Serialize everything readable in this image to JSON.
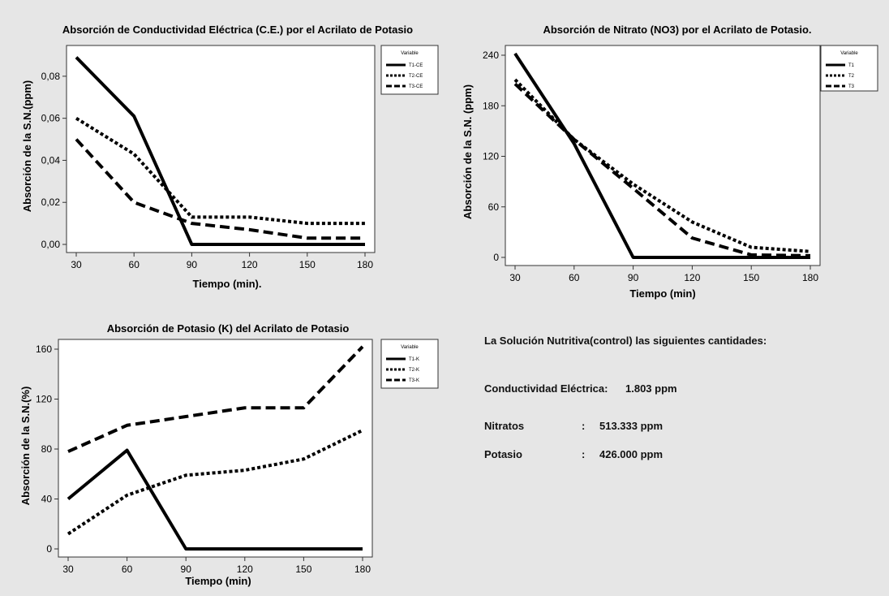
{
  "charts": [
    {
      "id": "ce",
      "title": "Absorción de Conductividad Eléctrica (C.E.) por el Acrilato de Potasio",
      "xlabel": "Tiempo (min).",
      "ylabel": "Absorción  de la S.N.(ppm)",
      "legend_title": "Variable"
    },
    {
      "id": "no3",
      "title": "Absorción de Nitrato (NO3) por el Acrilato de Potasio.",
      "xlabel": "Tiempo (min)",
      "ylabel": "Absorción de la S.N. (ppm)",
      "legend_title": "Variable"
    },
    {
      "id": "k",
      "title": "Absorción de Potasio (K) del Acrilato de Potasio",
      "xlabel": "Tiempo (min)",
      "ylabel": "Absorción  de la S.N.(%)",
      "legend_title": "Variable"
    }
  ],
  "chart_data": [
    {
      "type": "line",
      "title": "Absorción de Conductividad Eléctrica (C.E.) por el Acrilato de Potasio",
      "xlabel": "Tiempo (min).",
      "ylabel": "Absorción  de la S.N.(ppm)",
      "x": [
        30,
        60,
        90,
        120,
        150,
        180
      ],
      "xticks": [
        "30",
        "60",
        "90",
        "120",
        "150",
        "180"
      ],
      "yticks": [
        "0,00",
        "0,02",
        "0,04",
        "0,06",
        "0,08"
      ],
      "ytick_values": [
        0,
        0.02,
        0.04,
        0.06,
        0.08
      ],
      "xlim": [
        30,
        180
      ],
      "ylim": [
        0,
        0.09
      ],
      "legend_title": "Variable",
      "legend_position": "top-right",
      "series": [
        {
          "name": "T1-CE",
          "values": [
            0.089,
            0.061,
            0.0,
            0.0,
            0.0,
            0.0
          ],
          "style": "solid"
        },
        {
          "name": "T2-CE",
          "values": [
            0.06,
            0.043,
            0.013,
            0.013,
            0.01,
            0.01
          ],
          "style": "dotted"
        },
        {
          "name": "T3-CE",
          "values": [
            0.05,
            0.02,
            0.01,
            0.007,
            0.003,
            0.003
          ],
          "style": "dashed"
        }
      ]
    },
    {
      "type": "line",
      "title": "Absorción de Nitrato (NO3) por el Acrilato de Potasio.",
      "xlabel": "Tiempo (min)",
      "ylabel": "Absorción de la S.N. (ppm)",
      "x": [
        30,
        60,
        90,
        120,
        150,
        180
      ],
      "xticks": [
        "30",
        "60",
        "90",
        "120",
        "150",
        "180"
      ],
      "yticks": [
        "0",
        "60",
        "120",
        "180",
        "240"
      ],
      "ytick_values": [
        0,
        60,
        120,
        180,
        240
      ],
      "xlim": [
        30,
        180
      ],
      "ylim": [
        0,
        240
      ],
      "legend_title": "Variable",
      "legend_position": "top-right",
      "series": [
        {
          "name": "T1",
          "values": [
            242,
            135,
            0,
            0,
            0,
            0
          ],
          "style": "solid"
        },
        {
          "name": "T2",
          "values": [
            211,
            140,
            87,
            42,
            12,
            7
          ],
          "style": "dotted"
        },
        {
          "name": "T3",
          "values": [
            206,
            140,
            82,
            23,
            3,
            2
          ],
          "style": "dashed"
        }
      ]
    },
    {
      "type": "line",
      "title": "Absorción de Potasio (K) del Acrilato de Potasio",
      "xlabel": "Tiempo (min)",
      "ylabel": "Absorción  de la S.N.(%)",
      "x": [
        30,
        60,
        90,
        120,
        150,
        180
      ],
      "xticks": [
        "30",
        "60",
        "90",
        "120",
        "150",
        "180"
      ],
      "yticks": [
        "0",
        "40",
        "80",
        "120",
        "160"
      ],
      "ytick_values": [
        0,
        40,
        80,
        120,
        160
      ],
      "xlim": [
        30,
        180
      ],
      "ylim": [
        0,
        160
      ],
      "legend_title": "Variable",
      "legend_position": "top-right",
      "series": [
        {
          "name": "T1-K",
          "values": [
            40,
            79,
            0,
            0,
            0,
            0
          ],
          "style": "solid"
        },
        {
          "name": "T2-K",
          "values": [
            12,
            43,
            59,
            63,
            72,
            95
          ],
          "style": "dotted"
        },
        {
          "name": "T3-K",
          "values": [
            78,
            99,
            106,
            113,
            113,
            162
          ],
          "style": "dashed"
        }
      ]
    }
  ],
  "info": {
    "title": "La Solución Nutritiva(control) las siguientes cantidades:",
    "rows": [
      {
        "label": "Conductividad Eléctrica:",
        "sep": "",
        "value": "1.803 ppm"
      },
      {
        "label": "Nitratos",
        "sep": ":",
        "value": "513.333 ppm"
      },
      {
        "label": "Potasio",
        "sep": ":",
        "value": "426.000 ppm"
      }
    ]
  }
}
